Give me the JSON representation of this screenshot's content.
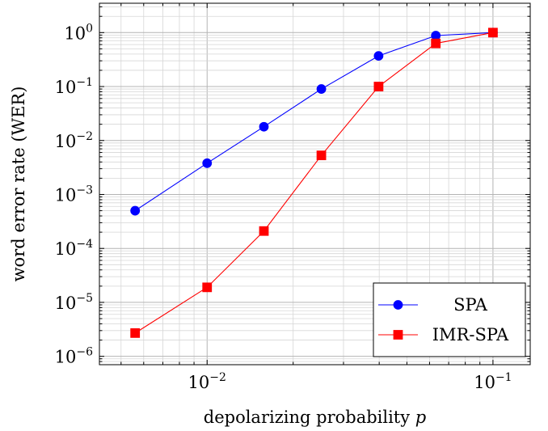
{
  "chart_data": {
    "type": "line",
    "title": "",
    "xlabel": "depolarizing probability p",
    "ylabel": "word error rate (WER)",
    "xscale": "log",
    "yscale": "log",
    "xlim": [
      0.0042,
      0.135
    ],
    "ylim": [
      7e-07,
      3.5
    ],
    "grid": true,
    "legend_position": "bottom-right",
    "x_ticks": [
      {
        "value": 0.01,
        "base": "10",
        "exp": "−2"
      },
      {
        "value": 0.1,
        "base": "10",
        "exp": "−1"
      }
    ],
    "y_ticks": [
      {
        "value": 1e-06,
        "base": "10",
        "exp": "−6"
      },
      {
        "value": 1e-05,
        "base": "10",
        "exp": "−5"
      },
      {
        "value": 0.0001,
        "base": "10",
        "exp": "−4"
      },
      {
        "value": 0.001,
        "base": "10",
        "exp": "−3"
      },
      {
        "value": 0.01,
        "base": "10",
        "exp": "−2"
      },
      {
        "value": 0.1,
        "base": "10",
        "exp": "−1"
      },
      {
        "value": 1,
        "base": "10",
        "exp": "0"
      }
    ],
    "series": [
      {
        "name": "SPA",
        "color": "#0000ff",
        "marker": "circle",
        "x": [
          0.0056,
          0.01,
          0.0158,
          0.0251,
          0.0398,
          0.0631,
          0.1
        ],
        "y": [
          0.0005,
          0.0038,
          0.018,
          0.09,
          0.37,
          0.88,
          1.0
        ]
      },
      {
        "name": "IMR-SPA",
        "color": "#ff0000",
        "marker": "square",
        "x": [
          0.0056,
          0.01,
          0.0158,
          0.0251,
          0.0398,
          0.0631,
          0.1
        ],
        "y": [
          2.7e-06,
          1.9e-05,
          0.00021,
          0.0053,
          0.1,
          0.63,
          1.0
        ]
      }
    ]
  }
}
